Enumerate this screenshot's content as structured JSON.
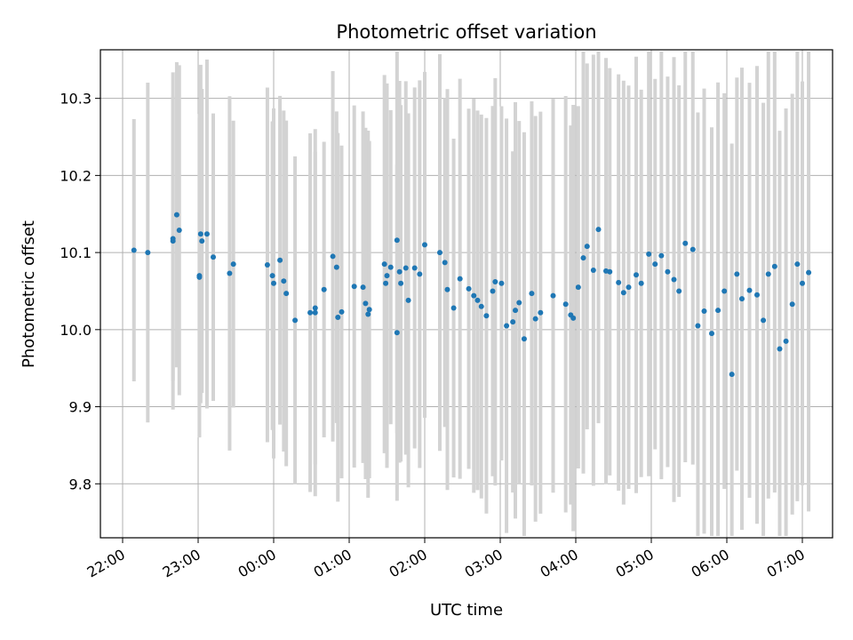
{
  "chart_data": {
    "type": "scatter",
    "title": "Photometric offset variation",
    "xlabel": "UTC time",
    "ylabel": "Photometric offset",
    "x_ticks": [
      "22:00",
      "23:00",
      "00:00",
      "01:00",
      "02:00",
      "03:00",
      "04:00",
      "05:00",
      "06:00",
      "07:00"
    ],
    "y_ticks": [
      "9.8",
      "9.9",
      "10.0",
      "10.1",
      "10.2",
      "10.3"
    ],
    "y_tick_values": [
      9.8,
      9.9,
      10.0,
      10.1,
      10.2,
      10.3
    ],
    "ylim": [
      9.73,
      10.363
    ],
    "grid": true,
    "error_bar_color": "#d3d3d3",
    "point_color": "#1f77b4",
    "series": [
      {
        "x": [
          "22:09",
          "22:20",
          "22:40",
          "22:40",
          "22:43",
          "22:45",
          "23:01",
          "23:01",
          "23:02",
          "23:03",
          "23:07",
          "23:12",
          "23:25",
          "23:28",
          "23:55",
          "23:59",
          "24:00",
          "24:05",
          "24:08",
          "24:10",
          "24:17",
          "24:29",
          "24:33",
          "24:33",
          "24:40",
          "24:47",
          "24:50",
          "24:51",
          "24:54",
          "25:04",
          "25:11",
          "25:13",
          "25:15",
          "25:16",
          "25:28",
          "25:29",
          "25:30",
          "25:33",
          "25:38",
          "25:38",
          "25:40",
          "25:41",
          "25:45",
          "25:47",
          "25:52",
          "25:56",
          "26:00",
          "26:12",
          "26:16",
          "26:18",
          "26:23",
          "26:28",
          "26:35",
          "26:39",
          "26:42",
          "26:45",
          "26:49",
          "26:54",
          "26:56",
          "27:01",
          "27:05",
          "27:10",
          "27:12",
          "27:15",
          "27:19",
          "27:25",
          "27:28",
          "27:32",
          "27:42",
          "27:52",
          "27:56",
          "27:58",
          "28:02",
          "28:06",
          "28:09",
          "28:14",
          "28:18",
          "28:24",
          "28:27",
          "28:34",
          "28:38",
          "28:42",
          "28:48",
          "28:52",
          "28:58",
          "29:03",
          "29:08",
          "29:13",
          "29:18",
          "29:22",
          "29:27",
          "29:33",
          "29:37",
          "29:42",
          "29:48",
          "29:53",
          "29:58",
          "30:04",
          "30:08",
          "30:12",
          "30:18",
          "30:24",
          "30:29",
          "30:33",
          "30:38",
          "30:42",
          "30:47",
          "30:52",
          "30:56",
          "31:00",
          "31:05"
        ],
        "y": [
          10.103,
          10.1,
          10.118,
          10.115,
          10.149,
          10.129,
          10.07,
          10.068,
          10.124,
          10.115,
          10.124,
          10.094,
          10.073,
          10.085,
          10.084,
          10.07,
          10.06,
          10.09,
          10.063,
          10.047,
          10.012,
          10.022,
          10.028,
          10.022,
          10.052,
          10.095,
          10.081,
          10.016,
          10.023,
          10.056,
          10.055,
          10.034,
          10.02,
          10.026,
          10.085,
          10.06,
          10.07,
          10.081,
          10.116,
          9.996,
          10.075,
          10.06,
          10.08,
          10.038,
          10.08,
          10.072,
          10.11,
          10.1,
          10.087,
          10.052,
          10.028,
          10.066,
          10.053,
          10.044,
          10.038,
          10.03,
          10.018,
          10.05,
          10.062,
          10.06,
          10.005,
          10.01,
          10.025,
          10.035,
          9.988,
          10.047,
          10.014,
          10.022,
          10.044,
          10.033,
          10.019,
          10.015,
          10.055,
          10.093,
          10.108,
          10.077,
          10.13,
          10.076,
          10.075,
          10.061,
          10.048,
          10.055,
          10.071,
          10.06,
          10.098,
          10.085,
          10.096,
          10.075,
          10.065,
          10.05,
          10.112,
          10.104,
          10.005,
          10.024,
          9.995,
          10.025,
          10.05,
          9.942,
          10.072,
          10.04,
          10.051,
          10.045,
          10.012,
          10.072,
          10.082,
          9.975,
          9.985,
          10.033,
          10.085,
          10.06,
          10.074
        ]
      }
    ]
  }
}
